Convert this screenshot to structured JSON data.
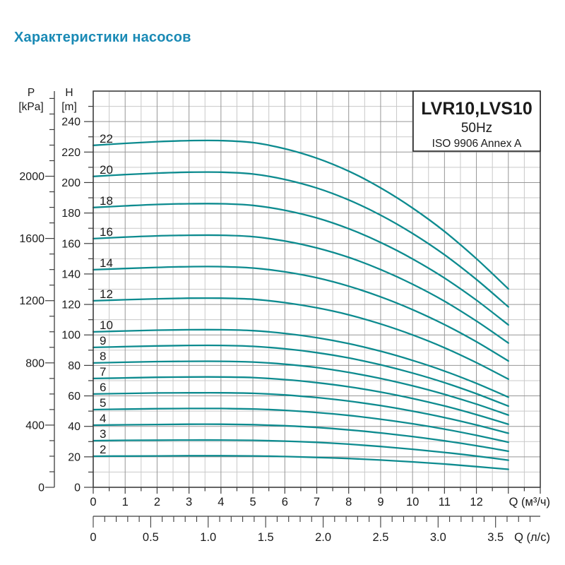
{
  "page": {
    "title": "Характеристики насосов",
    "title_color": "#1a8ab5"
  },
  "legend": {
    "model": "LVR10,LVS10",
    "frequency": "50Hz",
    "standard": "ISO 9906 Annex A"
  },
  "axes": {
    "pressure": {
      "name": "P",
      "unit": "[kPa]",
      "tick_labels": [
        0,
        400,
        800,
        1200,
        1600,
        2000
      ],
      "minor_step_kpa": 100,
      "label_step_kpa": 400
    },
    "head": {
      "name": "H",
      "unit": "[m]",
      "tick_labels": [
        0,
        20,
        40,
        60,
        80,
        100,
        120,
        140,
        160,
        180,
        200,
        220,
        240
      ],
      "minor_step_m": 10,
      "label_step_m": 20
    },
    "flow_m3h": {
      "label": "Q (м³/ч)",
      "tick_labels": [
        0,
        1,
        2,
        3,
        4,
        5,
        6,
        7,
        8,
        9,
        10,
        11,
        12
      ],
      "major_step": 1,
      "minor_step": 0.5
    },
    "flow_ls": {
      "label": "Q (л/с)",
      "tick_labels": [
        "0",
        "0.5",
        "1.0",
        "1.5",
        "2.0",
        "2.5",
        "3.0",
        "3.5"
      ],
      "label_step": 0.5,
      "minor_step": 0.1,
      "tick_max": 3.8
    }
  },
  "chart_data": {
    "type": "line",
    "title": "LVR10,LVS10",
    "subtitle": "50Hz",
    "note": "ISO 9906 Annex A",
    "xlabel": "Q (м³/ч)",
    "x2label": "Q (л/с)",
    "ylabel": "H [m]",
    "y2label": "P [kPa]",
    "xlim": [
      0,
      14
    ],
    "ylim": [
      0,
      260
    ],
    "m_per_kpa": 0.10207,
    "grid": {
      "major_color": "#969696",
      "minor_color": "#c9c9c9",
      "major_x_step": 1,
      "minor_x_step": 0.5,
      "major_y_step": 20,
      "minor_y_step": 10
    },
    "curve_color": "#0d8b8f",
    "x": [
      0,
      1,
      2,
      3,
      4,
      5,
      6,
      7,
      8,
      9,
      10,
      11,
      12,
      13
    ],
    "head_per_stage_m": [
      10.2,
      10.26,
      10.31,
      10.34,
      10.34,
      10.28,
      10.1,
      9.82,
      9.43,
      8.93,
      8.33,
      7.63,
      6.82,
      5.92
    ],
    "series": [
      {
        "name": "2",
        "stages": 2,
        "values": [
          20.4,
          20.5,
          20.6,
          20.7,
          20.7,
          20.6,
          20.2,
          19.6,
          18.9,
          17.9,
          16.7,
          15.3,
          13.6,
          11.8
        ]
      },
      {
        "name": "3",
        "stages": 3,
        "values": [
          30.6,
          30.8,
          30.9,
          31.0,
          31.0,
          30.8,
          30.3,
          29.5,
          28.3,
          26.8,
          25.0,
          22.9,
          20.5,
          17.8
        ]
      },
      {
        "name": "4",
        "stages": 4,
        "values": [
          40.8,
          41.0,
          41.2,
          41.4,
          41.4,
          41.1,
          40.4,
          39.3,
          37.7,
          35.7,
          33.3,
          30.5,
          27.3,
          23.7
        ]
      },
      {
        "name": "5",
        "stages": 5,
        "values": [
          51.0,
          51.3,
          51.6,
          51.7,
          51.7,
          51.4,
          50.5,
          49.1,
          47.2,
          44.7,
          41.7,
          38.2,
          34.1,
          29.6
        ]
      },
      {
        "name": "6",
        "stages": 6,
        "values": [
          61.2,
          61.6,
          61.9,
          62.0,
          62.0,
          61.7,
          60.6,
          58.9,
          56.6,
          53.6,
          50.0,
          45.8,
          40.9,
          35.5
        ]
      },
      {
        "name": "7",
        "stages": 7,
        "values": [
          71.4,
          71.8,
          72.2,
          72.4,
          72.4,
          72.0,
          70.7,
          68.7,
          66.0,
          62.5,
          58.3,
          53.4,
          47.7,
          41.4
        ]
      },
      {
        "name": "8",
        "stages": 8,
        "values": [
          81.6,
          82.1,
          82.5,
          82.7,
          82.7,
          82.2,
          80.8,
          78.6,
          75.4,
          71.4,
          66.6,
          61.0,
          54.6,
          47.4
        ]
      },
      {
        "name": "9",
        "stages": 9,
        "values": [
          91.8,
          92.3,
          92.8,
          93.1,
          93.1,
          92.5,
          90.9,
          88.4,
          84.9,
          80.4,
          75.0,
          68.7,
          61.4,
          53.3
        ]
      },
      {
        "name": "10",
        "stages": 10,
        "values": [
          102.0,
          102.6,
          103.1,
          103.4,
          103.4,
          102.8,
          101.0,
          98.2,
          94.3,
          89.3,
          83.3,
          76.3,
          68.2,
          59.2
        ]
      },
      {
        "name": "12",
        "stages": 12,
        "values": [
          122.4,
          123.1,
          123.7,
          124.1,
          124.1,
          123.4,
          121.2,
          117.8,
          113.2,
          107.2,
          100.0,
          91.6,
          81.8,
          71.0
        ]
      },
      {
        "name": "14",
        "stages": 14,
        "values": [
          142.8,
          143.6,
          144.3,
          144.8,
          144.8,
          143.9,
          141.4,
          137.5,
          132.0,
          125.0,
          116.6,
          106.8,
          95.5,
          82.9
        ]
      },
      {
        "name": "16",
        "stages": 16,
        "values": [
          163.2,
          164.2,
          165.0,
          165.4,
          165.4,
          164.5,
          161.6,
          157.1,
          150.9,
          142.9,
          133.3,
          122.1,
          109.1,
          94.7
        ]
      },
      {
        "name": "18",
        "stages": 18,
        "values": [
          183.6,
          184.7,
          185.6,
          186.1,
          186.1,
          185.0,
          181.8,
          176.8,
          169.7,
          160.7,
          149.9,
          137.3,
          122.8,
          106.6
        ]
      },
      {
        "name": "20",
        "stages": 20,
        "values": [
          204.0,
          205.2,
          206.2,
          206.8,
          206.8,
          205.6,
          202.0,
          196.4,
          188.6,
          178.6,
          166.6,
          152.6,
          136.4,
          118.4
        ]
      },
      {
        "name": "22",
        "stages": 22,
        "values": [
          224.4,
          225.7,
          226.8,
          227.5,
          227.5,
          226.2,
          222.2,
          216.0,
          207.5,
          196.5,
          183.3,
          167.9,
          150.0,
          130.2
        ]
      }
    ],
    "legend_position": "top-right"
  }
}
